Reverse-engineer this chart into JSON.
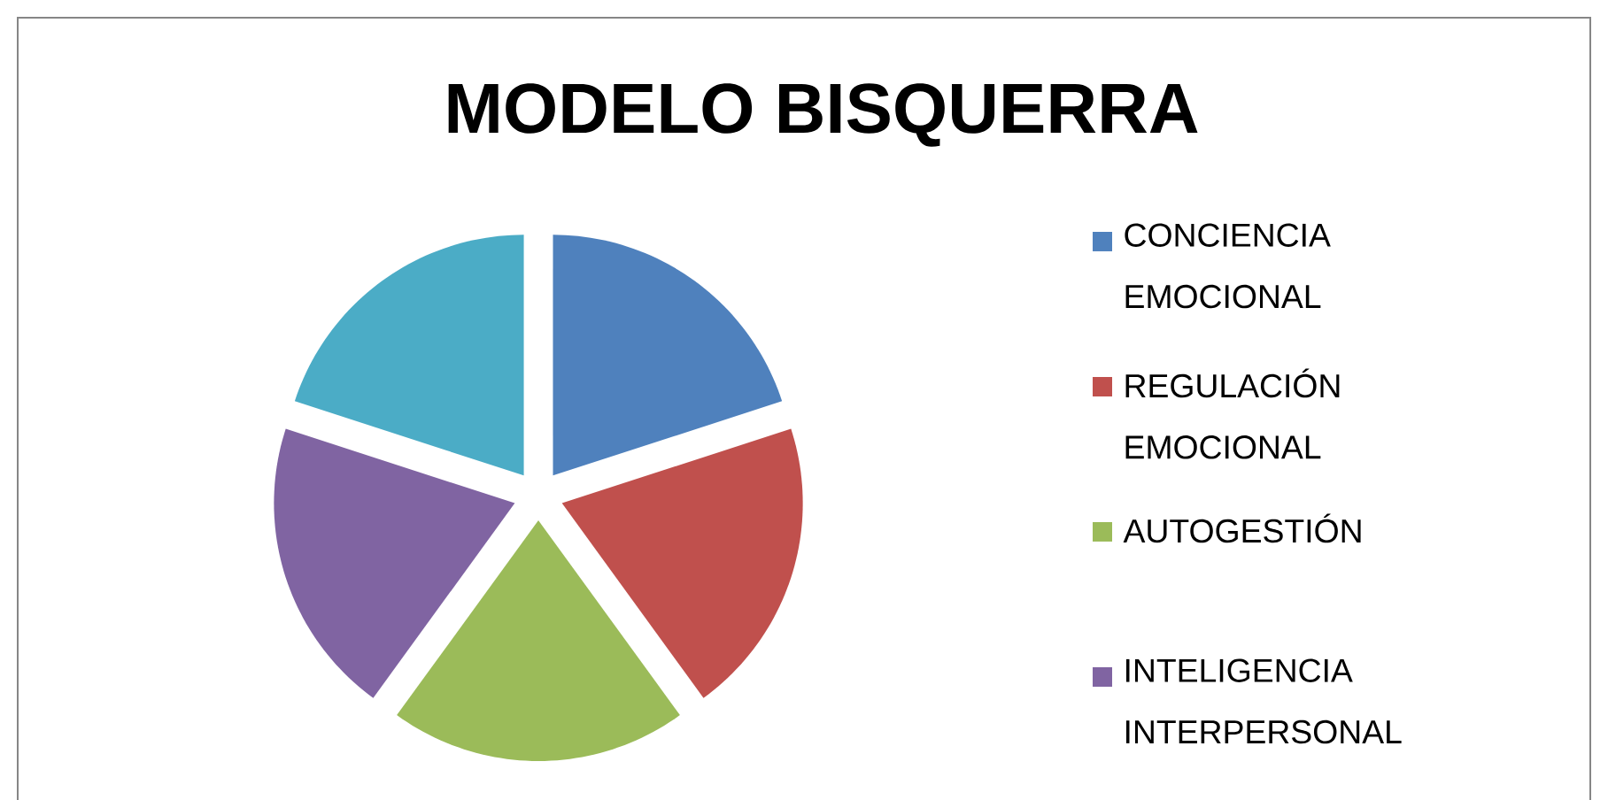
{
  "chart_data": {
    "type": "pie",
    "title": "MODELO BISQUERRA",
    "categories": [
      "CONCIENCIA EMOCIONAL",
      "REGULACIÓN EMOCIONAL",
      "AUTOGESTIÓN",
      "INTELIGENCIA INTERPERSONAL",
      null
    ],
    "values": [
      20,
      20,
      20,
      20,
      20
    ],
    "colors": [
      "#4f81bd",
      "#c0504d",
      "#9bbb59",
      "#8064a2",
      "#4bacc6"
    ],
    "legend": "right"
  }
}
